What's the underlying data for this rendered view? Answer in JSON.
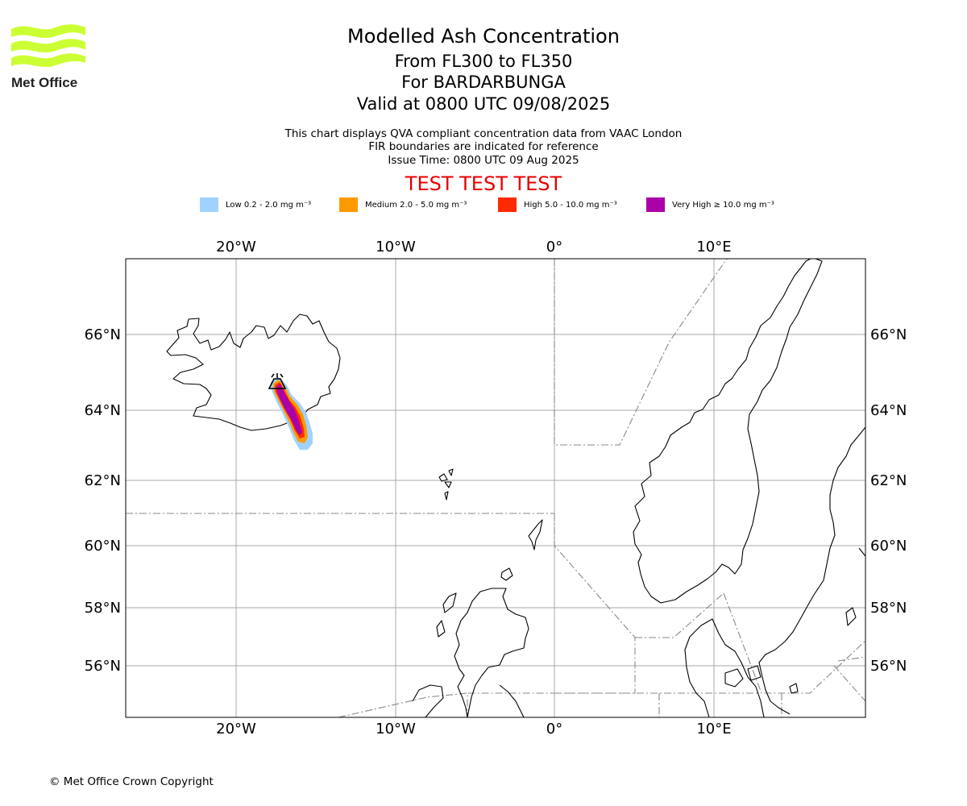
{
  "logo": {
    "text": "Met Office",
    "color": "#ccff33"
  },
  "header": {
    "title": "Modelled Ash Concentration",
    "levels": "From FL300 to FL350",
    "volcano": "For BARDARBUNGA",
    "valid": "Valid at 0800 UTC 09/08/2025",
    "info1": "This chart displays QVA compliant concentration data from VAAC London",
    "info2": "FIR boundaries are indicated for reference",
    "issue": "Issue Time: 0800 UTC 09 Aug 2025",
    "test_banner": "TEST TEST TEST"
  },
  "legend": [
    {
      "label": "Low 0.2 - 2.0 mg m⁻³",
      "color": "#a0d2ff"
    },
    {
      "label": "Medium 2.0 - 5.0 mg m⁻³",
      "color": "#ff9900"
    },
    {
      "label": "High 5.0 - 10.0 mg m⁻³",
      "color": "#ff2a00"
    },
    {
      "label": "Very High  ≥  10.0 mg m⁻³",
      "color": "#aa00aa"
    }
  ],
  "map": {
    "lon_labels": [
      "20°W",
      "10°W",
      "0°",
      "10°E"
    ],
    "lat_labels": [
      "66°N",
      "64°N",
      "62°N",
      "60°N",
      "58°N",
      "56°N"
    ],
    "grid_color": "#aaaaaa",
    "fir_color": "#888888"
  },
  "footer": {
    "copyright": "© Met Office Crown Copyright"
  }
}
